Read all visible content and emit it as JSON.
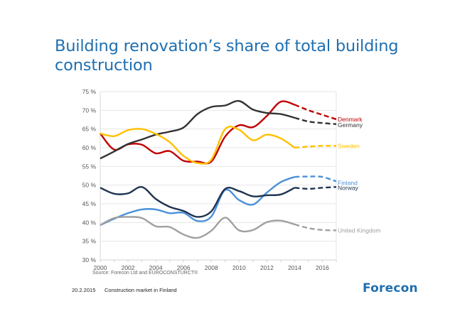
{
  "slide": {
    "title": "Building renovation’s share of total building construction",
    "source": "Source: Forecon Ltd and EUROCONSTURCT®",
    "footer_date": "20.2.2015",
    "footer_text": "Construction market in Finland",
    "brand": "Forecon"
  },
  "chart_data": {
    "type": "line",
    "title": "Building renovation’s share of total building construction",
    "xlabel": "",
    "ylabel": "",
    "xlim": [
      2000,
      2017
    ],
    "ylim": [
      30,
      75
    ],
    "grid": true,
    "x_ticks": [
      "2000",
      "2002",
      "2004",
      "2006",
      "2008",
      "2010",
      "2012",
      "2014",
      "2016"
    ],
    "y_ticks": [
      "30 %",
      "35 %",
      "40 %",
      "45 %",
      "50 %",
      "55 %",
      "60 %",
      "65 %",
      "70 %",
      "75 %"
    ],
    "forecast_from": 2014,
    "legend": "right-end labels",
    "x": [
      2000,
      2001,
      2002,
      2003,
      2004,
      2005,
      2006,
      2007,
      2008,
      2009,
      2010,
      2011,
      2012,
      2013,
      2014,
      2015,
      2016,
      2017
    ],
    "series": [
      {
        "name": "Denmark",
        "color": "#c00000",
        "values": [
          63.8,
          59.5,
          60.9,
          60.8,
          58.5,
          59.1,
          56.5,
          56.3,
          56.3,
          63.0,
          66.0,
          65.5,
          68.5,
          72.3,
          71.5,
          70.0,
          68.8,
          67.6
        ]
      },
      {
        "name": "Germany",
        "color": "#333333",
        "values": [
          57.1,
          59.0,
          61.0,
          62.2,
          63.5,
          64.3,
          65.4,
          69.0,
          70.9,
          71.3,
          72.5,
          70.2,
          69.3,
          69.0,
          68.0,
          67.0,
          66.6,
          66.3
        ]
      },
      {
        "name": "Sweden",
        "color": "#ffc000",
        "values": [
          63.8,
          63.1,
          64.7,
          65.0,
          63.7,
          61.5,
          57.8,
          55.9,
          56.8,
          65.0,
          64.8,
          62.0,
          63.5,
          62.5,
          60.0,
          60.3,
          60.5,
          60.5
        ]
      },
      {
        "name": "Finland",
        "color": "#4a90d9",
        "values": [
          39.3,
          41.0,
          42.5,
          43.5,
          43.5,
          42.5,
          42.6,
          40.4,
          41.6,
          48.7,
          46.0,
          44.8,
          48.0,
          50.8,
          52.2,
          52.3,
          52.2,
          51.0
        ]
      },
      {
        "name": "Norway",
        "color": "#1f3350",
        "values": [
          49.3,
          47.7,
          47.8,
          49.5,
          46.3,
          44.2,
          43.1,
          41.5,
          43.0,
          49.0,
          48.4,
          47.0,
          47.3,
          47.5,
          49.3,
          49.0,
          49.3,
          49.5
        ]
      },
      {
        "name": "United Kingdom",
        "color": "#a0a0a0",
        "values": [
          39.3,
          41.2,
          41.5,
          41.2,
          39.0,
          38.8,
          36.8,
          35.9,
          37.8,
          41.3,
          37.9,
          38.0,
          40.1,
          40.5,
          39.5,
          38.5,
          38.0,
          37.9
        ]
      }
    ]
  }
}
